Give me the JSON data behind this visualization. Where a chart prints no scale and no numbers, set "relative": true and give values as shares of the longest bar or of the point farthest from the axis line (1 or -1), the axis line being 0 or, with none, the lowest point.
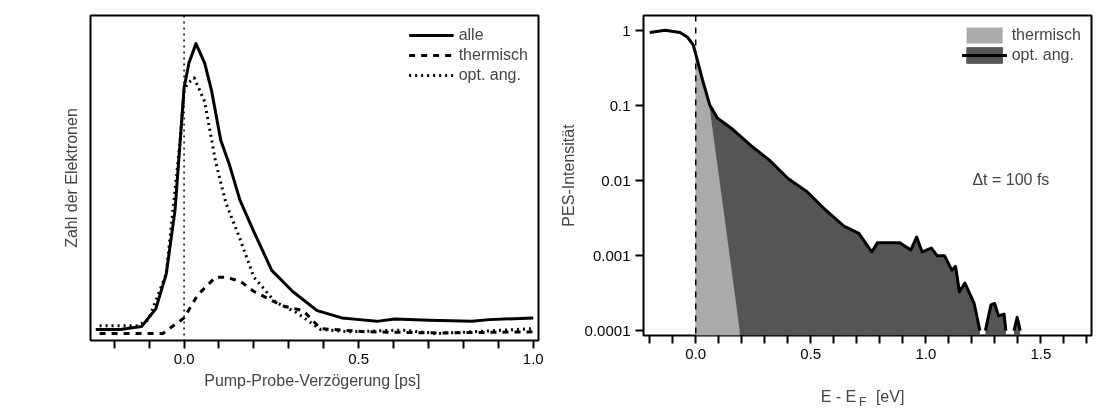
{
  "chart_data": [
    {
      "type": "line",
      "relative": true,
      "xlabel": "Pump-Probe-Verzögerung  [ps]",
      "ylabel": "Zahl der Elektronen",
      "xlim": [
        -0.268,
        1.015
      ],
      "xticks": [
        {
          "value": -0.2,
          "label": null
        },
        {
          "value": -0.1,
          "label": null
        },
        {
          "value": 0,
          "label": "0.0"
        },
        {
          "value": 0.1,
          "label": null
        },
        {
          "value": 0.2,
          "label": null
        },
        {
          "value": 0.3,
          "label": null
        },
        {
          "value": 0.4,
          "label": null
        },
        {
          "value": 0.5,
          "label": "0.5"
        },
        {
          "value": 0.6,
          "label": null
        },
        {
          "value": 0.7,
          "label": null
        },
        {
          "value": 0.8,
          "label": null
        },
        {
          "value": 0.9,
          "label": null
        },
        {
          "value": 1.0,
          "label": "1.0"
        }
      ],
      "grid": false,
      "legend": "top right",
      "ref_lines": [
        {
          "axis": "x",
          "value": 0,
          "label": null,
          "color": "#000000",
          "line_style": "dotted"
        }
      ],
      "series": [
        {
          "name": "alle",
          "color": "#000000",
          "line_style": "solid",
          "x": [
            -0.253,
            -0.182,
            -0.122,
            -0.081,
            -0.051,
            -0.026,
            -0.011,
            0,
            0.014,
            0.034,
            0.059,
            0.079,
            0.105,
            0.13,
            0.16,
            0.2,
            0.251,
            0.311,
            0.381,
            0.452,
            0.502,
            0.552,
            0.603,
            0.703,
            0.824,
            0.874,
            1.0
          ],
          "values": [
            0.014,
            0.014,
            0.024,
            0.085,
            0.206,
            0.424,
            0.667,
            0.848,
            0.933,
            1.0,
            0.933,
            0.836,
            0.667,
            0.582,
            0.46,
            0.351,
            0.218,
            0.145,
            0.079,
            0.054,
            0.048,
            0.042,
            0.05,
            0.046,
            0.042,
            0.048,
            0.054
          ]
        },
        {
          "name": "thermisch",
          "color": "#000000",
          "line_style": "dashed",
          "x": [
            -0.242,
            -0.122,
            -0.061,
            0,
            0.039,
            0.09,
            0.12,
            0.16,
            0.2,
            0.24,
            0.281,
            0.341,
            0.391,
            0.522,
            0.723,
            1.0
          ],
          "values": [
            0,
            0,
            0,
            0.054,
            0.133,
            0.194,
            0.194,
            0.181,
            0.145,
            0.121,
            0.096,
            0.079,
            0.017,
            0.006,
            0.002,
            0.006
          ]
        },
        {
          "name": "opt. ang.",
          "color": "#000000",
          "line_style": "dotted",
          "x": [
            -0.242,
            -0.132,
            -0.102,
            -0.051,
            -0.011,
            0,
            0.009,
            0.029,
            0.059,
            0.09,
            0.12,
            0.16,
            0.2,
            0.261,
            0.321,
            0.391,
            0.472,
            0.623,
            0.723,
            0.824,
            1.0
          ],
          "values": [
            0.027,
            0.027,
            0.048,
            0.206,
            0.667,
            0.836,
            0.861,
            0.882,
            0.8,
            0.594,
            0.449,
            0.327,
            0.194,
            0.109,
            0.073,
            0.014,
            0.006,
            0.012,
            0,
            0.006,
            0.017
          ]
        }
      ]
    },
    {
      "type": "area",
      "log": "y",
      "xlabel": "E - E$_{F}$  [eV]",
      "ylabel": "PES-Intensität",
      "xlim": [
        -0.227,
        1.72
      ],
      "ylim": [
        8.6e-05,
        1.6
      ],
      "xticks": [
        {
          "value": -0.2,
          "label": null
        },
        {
          "value": -0.1,
          "label": null
        },
        {
          "value": 0,
          "label": "0.0"
        },
        {
          "value": 0.1,
          "label": null
        },
        {
          "value": 0.2,
          "label": null
        },
        {
          "value": 0.3,
          "label": null
        },
        {
          "value": 0.4,
          "label": null
        },
        {
          "value": 0.5,
          "label": "0.5"
        },
        {
          "value": 0.6,
          "label": null
        },
        {
          "value": 0.7,
          "label": null
        },
        {
          "value": 0.8,
          "label": null
        },
        {
          "value": 0.9,
          "label": null
        },
        {
          "value": 1.0,
          "label": "1.0"
        },
        {
          "value": 1.1,
          "label": null
        },
        {
          "value": 1.2,
          "label": null
        },
        {
          "value": 1.3,
          "label": null
        },
        {
          "value": 1.4,
          "label": null
        },
        {
          "value": 1.5,
          "label": "1.5"
        },
        {
          "value": 1.6,
          "label": null
        },
        {
          "value": 1.7,
          "label": null
        }
      ],
      "yticks": [
        0.0001,
        0.001,
        0.01,
        0.1,
        1
      ],
      "grid": false,
      "legend": "top right",
      "annotations": [
        "Δt = 100 fs"
      ],
      "ref_lines": [
        {
          "axis": "x",
          "value": 0,
          "label": null,
          "color": "#000000",
          "line_style": "dashed"
        }
      ],
      "series": [
        {
          "name": "thermisch",
          "type": "area",
          "color": "#aaaaaa",
          "x": [
            0,
            0.061,
            0.126,
            0.191
          ],
          "values": [
            0.49,
            0.0908,
            0.0031,
            0.0001
          ]
        },
        {
          "name": "opt. ang.",
          "type": "area",
          "color": "#555555",
          "x": [
            0,
            0.029,
            0.061,
            0.094,
            0.159,
            0.239,
            0.32,
            0.401,
            0.482,
            0.563,
            0.644,
            0.709,
            0.765,
            0.79,
            0.887,
            0.935,
            0.96,
            0.984,
            1.024,
            1.049,
            1.081,
            1.113,
            1.129,
            1.146,
            1.17,
            1.21,
            1.235,
            1.247,
            1.259,
            1.283,
            1.299,
            1.316,
            1.34,
            1.348,
            1.366,
            1.383,
            1.39,
            1.397,
            1.404,
            1.41
          ],
          "values": [
            0.49,
            0.224,
            0.102,
            0.0686,
            0.0489,
            0.0295,
            0.0188,
            0.0107,
            0.0072,
            0.0041,
            0.00248,
            0.00198,
            0.00112,
            0.00149,
            0.00149,
            0.00119,
            0.00177,
            0.00112,
            0.00126,
            0.001,
            0.001,
            0.00064,
            0.00072,
            0.00033,
            0.00043,
            0.00023,
            0.0001,
            null,
            0.0001,
            0.00022,
            0.00023,
            0.000157,
            0.000166,
            0.0001,
            null,
            0.0001,
            0.000122,
            0.00015,
            0.000122,
            0.0001
          ]
        },
        {
          "type": "line",
          "color": "#000000",
          "x": [
            -0.2,
            -0.133,
            -0.068,
            -0.036,
            -0.011,
            0
          ],
          "values": [
            0.95,
            1.02,
            0.95,
            0.82,
            0.65,
            0.49
          ]
        }
      ]
    }
  ]
}
